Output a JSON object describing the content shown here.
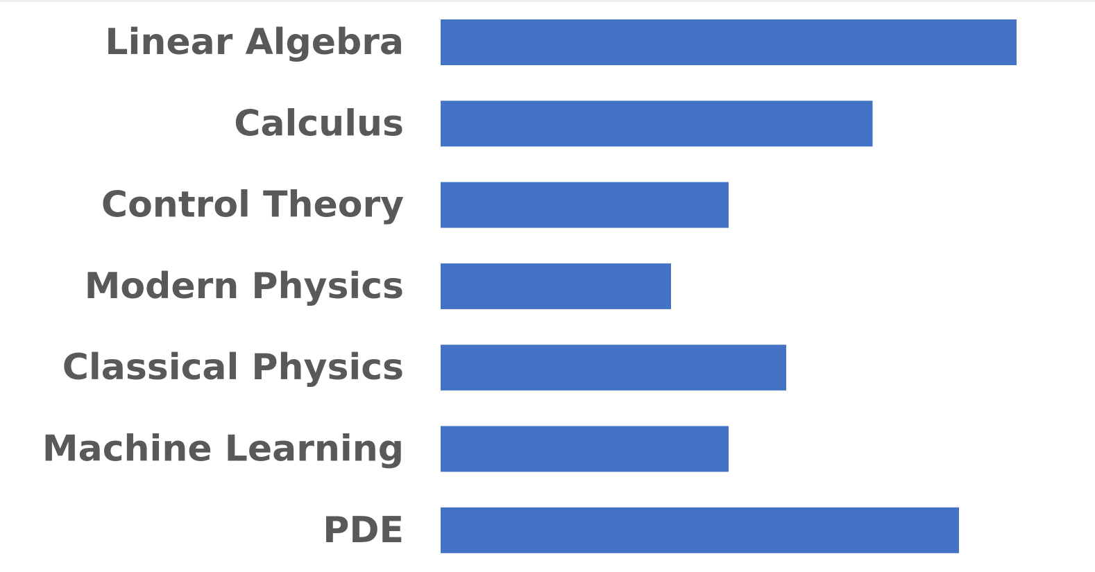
{
  "chart_data": {
    "type": "bar",
    "orientation": "horizontal",
    "categories": [
      "Linear Algebra",
      "Calculus",
      "Control Theory",
      "Modern Physics",
      "Classical Physics",
      "Machine Learning",
      "PDE"
    ],
    "values": [
      10,
      7.5,
      5,
      4,
      6,
      5,
      9
    ],
    "xlim": [
      0,
      10
    ],
    "title": "",
    "xlabel": "",
    "ylabel": "",
    "grid": false,
    "legend": "none",
    "bar_color": "#4472C4",
    "label_color": "#595959"
  }
}
